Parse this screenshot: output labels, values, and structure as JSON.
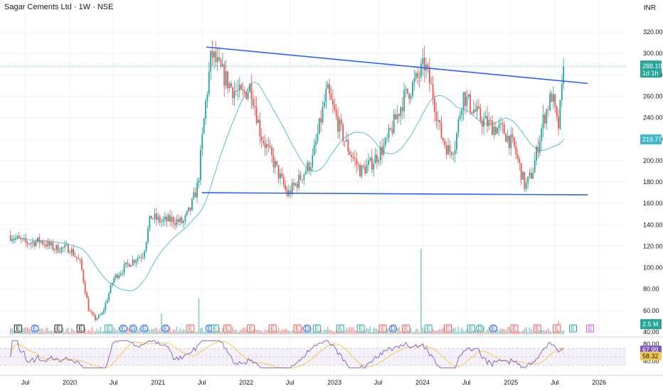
{
  "header": {
    "title": "Sagar Cements Ltd · 1W · NSE",
    "currency": "INR"
  },
  "price_badges": {
    "last_price": "288.10",
    "countdown": "1d 1h",
    "ma_value": "219.77",
    "volume": "2.5 M",
    "rsi": "67.99",
    "rsi_ma": "58.32"
  },
  "colors": {
    "up": "#26a69a",
    "down": "#ef5350",
    "trendline": "#2962ff",
    "ma": "#5bc0cf",
    "rsi_line": "#7e57c2",
    "rsi_ma": "#f7c948",
    "grid": "#f0f3fa",
    "earnings_blue": "#2962ff",
    "earnings_green": "#26a69a",
    "earnings_red": "#ef5350",
    "earnings_gray": "#131722",
    "earnings_purple": "#e040fb"
  },
  "chart_data": {
    "type": "candlestick",
    "title": "Sagar Cements Ltd · 1W · NSE",
    "y_unit": "INR",
    "y_ticks": [
      "40.00",
      "60.00",
      "80.00",
      "100.00",
      "120.00",
      "140.00",
      "160.00",
      "180.00",
      "200.00",
      "220.00",
      "240.00",
      "260.00",
      "280.00",
      "300.00",
      "320.00"
    ],
    "ylim": [
      38,
      326
    ],
    "x_ticks": [
      "Jul",
      "2020",
      "Jul",
      "2021",
      "Jul",
      "2022",
      "Jul",
      "2023",
      "Jul",
      "2024",
      "Jul",
      "2025",
      "Jul",
      "2026"
    ],
    "price_path": [
      [
        "2019-05-01",
        130
      ],
      [
        "2019-07-01",
        123
      ],
      [
        "2019-09-01",
        125
      ],
      [
        "2019-11-01",
        118
      ],
      [
        "2020-01-01",
        118
      ],
      [
        "2020-02-15",
        104
      ],
      [
        "2020-03-20",
        60
      ],
      [
        "2020-04-15",
        52
      ],
      [
        "2020-05-15",
        57
      ],
      [
        "2020-07-01",
        90
      ],
      [
        "2020-09-01",
        104
      ],
      [
        "2020-11-01",
        113
      ],
      [
        "2020-12-01",
        148
      ],
      [
        "2021-01-15",
        143
      ],
      [
        "2021-03-01",
        145
      ],
      [
        "2021-04-15",
        142
      ],
      [
        "2021-05-15",
        155
      ],
      [
        "2021-06-15",
        178
      ],
      [
        "2021-07-15",
        250
      ],
      [
        "2021-08-10",
        300
      ],
      [
        "2021-09-10",
        286
      ],
      [
        "2021-11-01",
        268
      ],
      [
        "2021-12-15",
        260
      ],
      [
        "2022-01-20",
        270
      ],
      [
        "2022-03-01",
        225
      ],
      [
        "2022-05-01",
        195
      ],
      [
        "2022-06-20",
        168
      ],
      [
        "2022-08-01",
        180
      ],
      [
        "2022-10-01",
        200
      ],
      [
        "2022-12-01",
        265
      ],
      [
        "2023-01-20",
        232
      ],
      [
        "2023-03-01",
        210
      ],
      [
        "2023-04-20",
        190
      ],
      [
        "2023-06-01",
        197
      ],
      [
        "2023-08-01",
        215
      ],
      [
        "2023-10-15",
        258
      ],
      [
        "2023-12-15",
        278
      ],
      [
        "2024-01-10",
        290
      ],
      [
        "2024-02-15",
        260
      ],
      [
        "2024-03-15",
        225
      ],
      [
        "2024-04-20",
        208
      ],
      [
        "2024-05-15",
        215
      ],
      [
        "2024-06-15",
        262
      ],
      [
        "2024-07-15",
        252
      ],
      [
        "2024-09-01",
        238
      ],
      [
        "2024-10-15",
        232
      ],
      [
        "2024-12-01",
        228
      ],
      [
        "2025-01-15",
        212
      ],
      [
        "2025-03-01",
        175
      ],
      [
        "2025-04-01",
        190
      ],
      [
        "2025-05-15",
        238
      ],
      [
        "2025-06-20",
        262
      ],
      [
        "2025-07-15",
        228
      ],
      [
        "2025-08-10",
        288.1
      ]
    ],
    "trendlines": [
      {
        "name": "",
        "from": [
          "2021-07-20",
          306
        ],
        "to": [
          "2025-11-15",
          272
        ]
      },
      {
        "name": "",
        "from": [
          "2021-07-01",
          170
        ],
        "to": [
          "2025-11-15",
          168
        ]
      }
    ],
    "moving_average_last": 219.77,
    "volume_last": "2.5 M",
    "volume_ylim": [
      0,
      100
    ],
    "volume_spikes": [
      [
        "2021-06-20",
        42
      ],
      [
        "2021-01-15",
        24
      ],
      [
        "2023-12-25",
        100
      ],
      [
        "2025-07-20",
        15
      ]
    ],
    "rsi": {
      "last": 67.99,
      "ma_last": 58.32,
      "ylim": [
        20,
        90
      ],
      "levels": [
        30,
        70
      ]
    },
    "earnings_markers": [
      [
        "2019-06-01",
        "E",
        "gray"
      ],
      [
        "2019-08-10",
        "E",
        "blue"
      ],
      [
        "2019-11-15",
        "E",
        "gray"
      ],
      [
        "2020-02-15",
        "E",
        "gray"
      ],
      [
        "2020-06-10",
        "E",
        "green"
      ],
      [
        "2020-08-10",
        "E",
        "blue"
      ],
      [
        "2020-09-20",
        "D",
        "blue"
      ],
      [
        "2020-11-05",
        "E",
        "blue"
      ],
      [
        "2021-02-01",
        "E",
        "blue"
      ],
      [
        "2021-05-15",
        "E",
        "red"
      ],
      [
        "2021-08-01",
        "E",
        "blue"
      ],
      [
        "2021-08-25",
        "E",
        "green"
      ],
      [
        "2021-10-15",
        "E",
        "red"
      ],
      [
        "2022-01-20",
        "E",
        "red"
      ],
      [
        "2022-04-20",
        "E",
        "red"
      ],
      [
        "2022-08-01",
        "E",
        "red"
      ],
      [
        "2022-09-10",
        "D",
        "blue"
      ],
      [
        "2022-10-20",
        "E",
        "green"
      ],
      [
        "2023-01-25",
        "E",
        "green"
      ],
      [
        "2023-04-20",
        "E",
        "green"
      ],
      [
        "2023-07-20",
        "E",
        "red"
      ],
      [
        "2023-09-01",
        "D",
        "blue"
      ],
      [
        "2023-10-25",
        "E",
        "red"
      ],
      [
        "2024-01-25",
        "E",
        "green"
      ],
      [
        "2024-04-15",
        "E",
        "red"
      ],
      [
        "2024-07-20",
        "E",
        "green"
      ],
      [
        "2024-08-25",
        "D",
        "green"
      ],
      [
        "2024-10-20",
        "E",
        "blue"
      ],
      [
        "2025-01-15",
        "E",
        "red"
      ],
      [
        "2025-04-20",
        "E",
        "red"
      ],
      [
        "2025-07-10",
        "E",
        "red"
      ],
      [
        "2025-09-15",
        "E",
        "green"
      ],
      [
        "2025-11-25",
        "E",
        "purple"
      ]
    ]
  }
}
